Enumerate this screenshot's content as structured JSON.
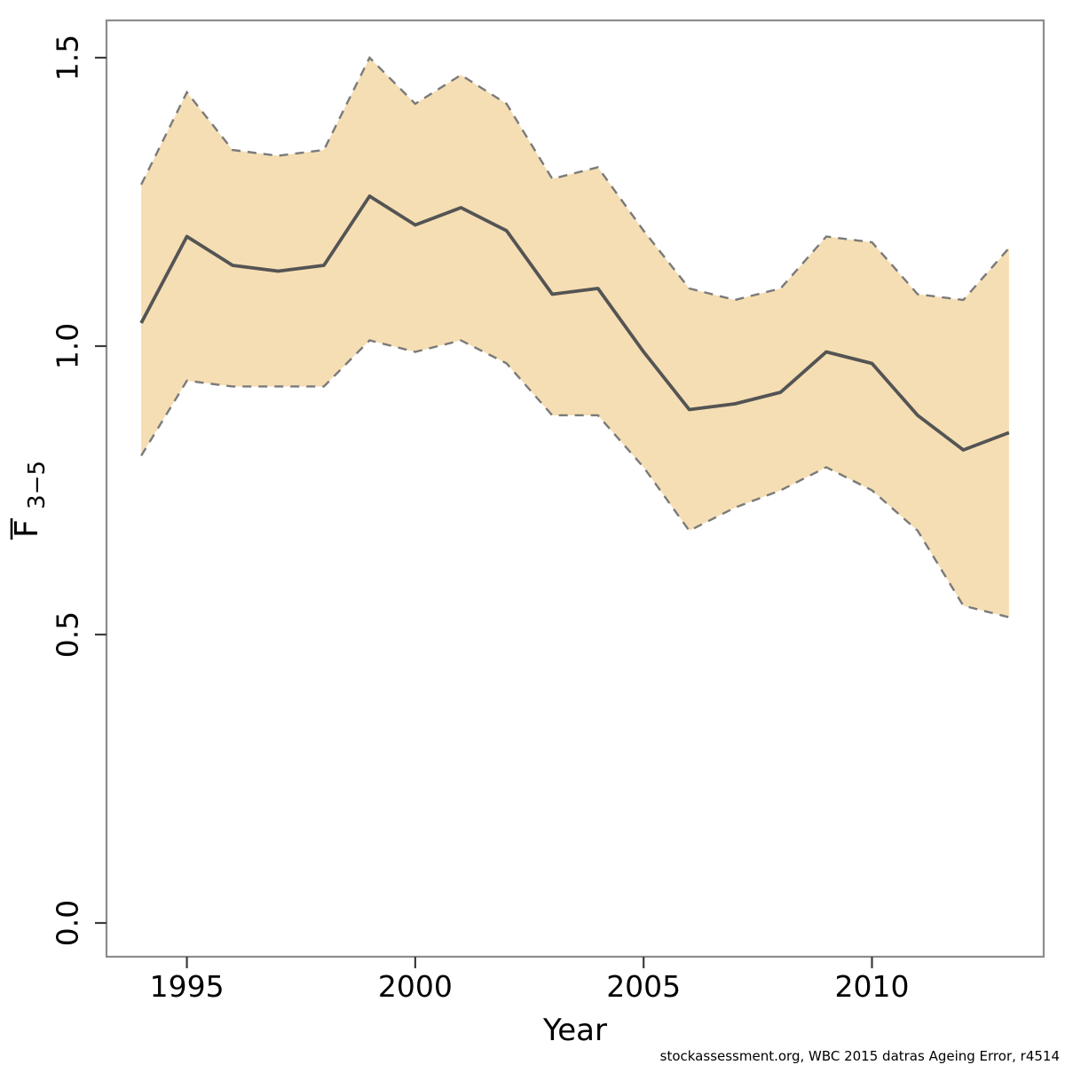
{
  "chart_data": {
    "type": "line",
    "subtype": "line-with-confidence-band",
    "title": "",
    "xlabel": "Year",
    "ylabel": "F̄3−5",
    "ylabel_main": "F",
    "ylabel_sub": "3−5",
    "x": [
      1994,
      1995,
      1996,
      1997,
      1998,
      1999,
      2000,
      2001,
      2002,
      2003,
      2004,
      2005,
      2006,
      2007,
      2008,
      2009,
      2010,
      2011,
      2012,
      2013
    ],
    "series": [
      {
        "name": "estimate",
        "style": "solid",
        "values": [
          1.04,
          1.19,
          1.14,
          1.13,
          1.14,
          1.26,
          1.21,
          1.24,
          1.2,
          1.09,
          1.1,
          0.99,
          0.89,
          0.9,
          0.92,
          0.99,
          0.97,
          0.88,
          0.82,
          0.85
        ]
      },
      {
        "name": "lower-bound",
        "style": "dashed",
        "values": [
          0.81,
          0.94,
          0.93,
          0.93,
          0.93,
          1.01,
          0.99,
          1.01,
          0.97,
          0.88,
          0.88,
          0.79,
          0.68,
          0.72,
          0.75,
          0.79,
          0.75,
          0.68,
          0.55,
          0.53
        ]
      },
      {
        "name": "upper-bound",
        "style": "dashed",
        "values": [
          1.28,
          1.44,
          1.34,
          1.33,
          1.34,
          1.5,
          1.42,
          1.47,
          1.42,
          1.29,
          1.31,
          1.2,
          1.1,
          1.08,
          1.1,
          1.19,
          1.18,
          1.09,
          1.08,
          1.17
        ]
      }
    ],
    "x_ticks": {
      "values": [
        1995,
        2000,
        2005,
        2010
      ],
      "labels": [
        "1995",
        "2000",
        "2005",
        "2010"
      ]
    },
    "y_ticks": {
      "values": [
        0.0,
        0.5,
        1.0,
        1.5
      ],
      "labels": [
        "0.0",
        "0.5",
        "1.0",
        "1.5"
      ]
    },
    "x_range": [
      1993.24,
      2013.76
    ],
    "y_range": [
      -0.0585,
      1.5646
    ],
    "grid": false,
    "legend": "none"
  },
  "footer": {
    "credit": "stockassessment.org, WBC 2015 datras Ageing Error, r4514"
  },
  "colors": {
    "background": "#ffffff",
    "band_fill": "#f5deb3",
    "band_border": "#7a7a7a",
    "estimate_line": "#545454",
    "plot_border": "#8c8c8c",
    "tick": "#3c3c3c",
    "text": "#000000"
  }
}
